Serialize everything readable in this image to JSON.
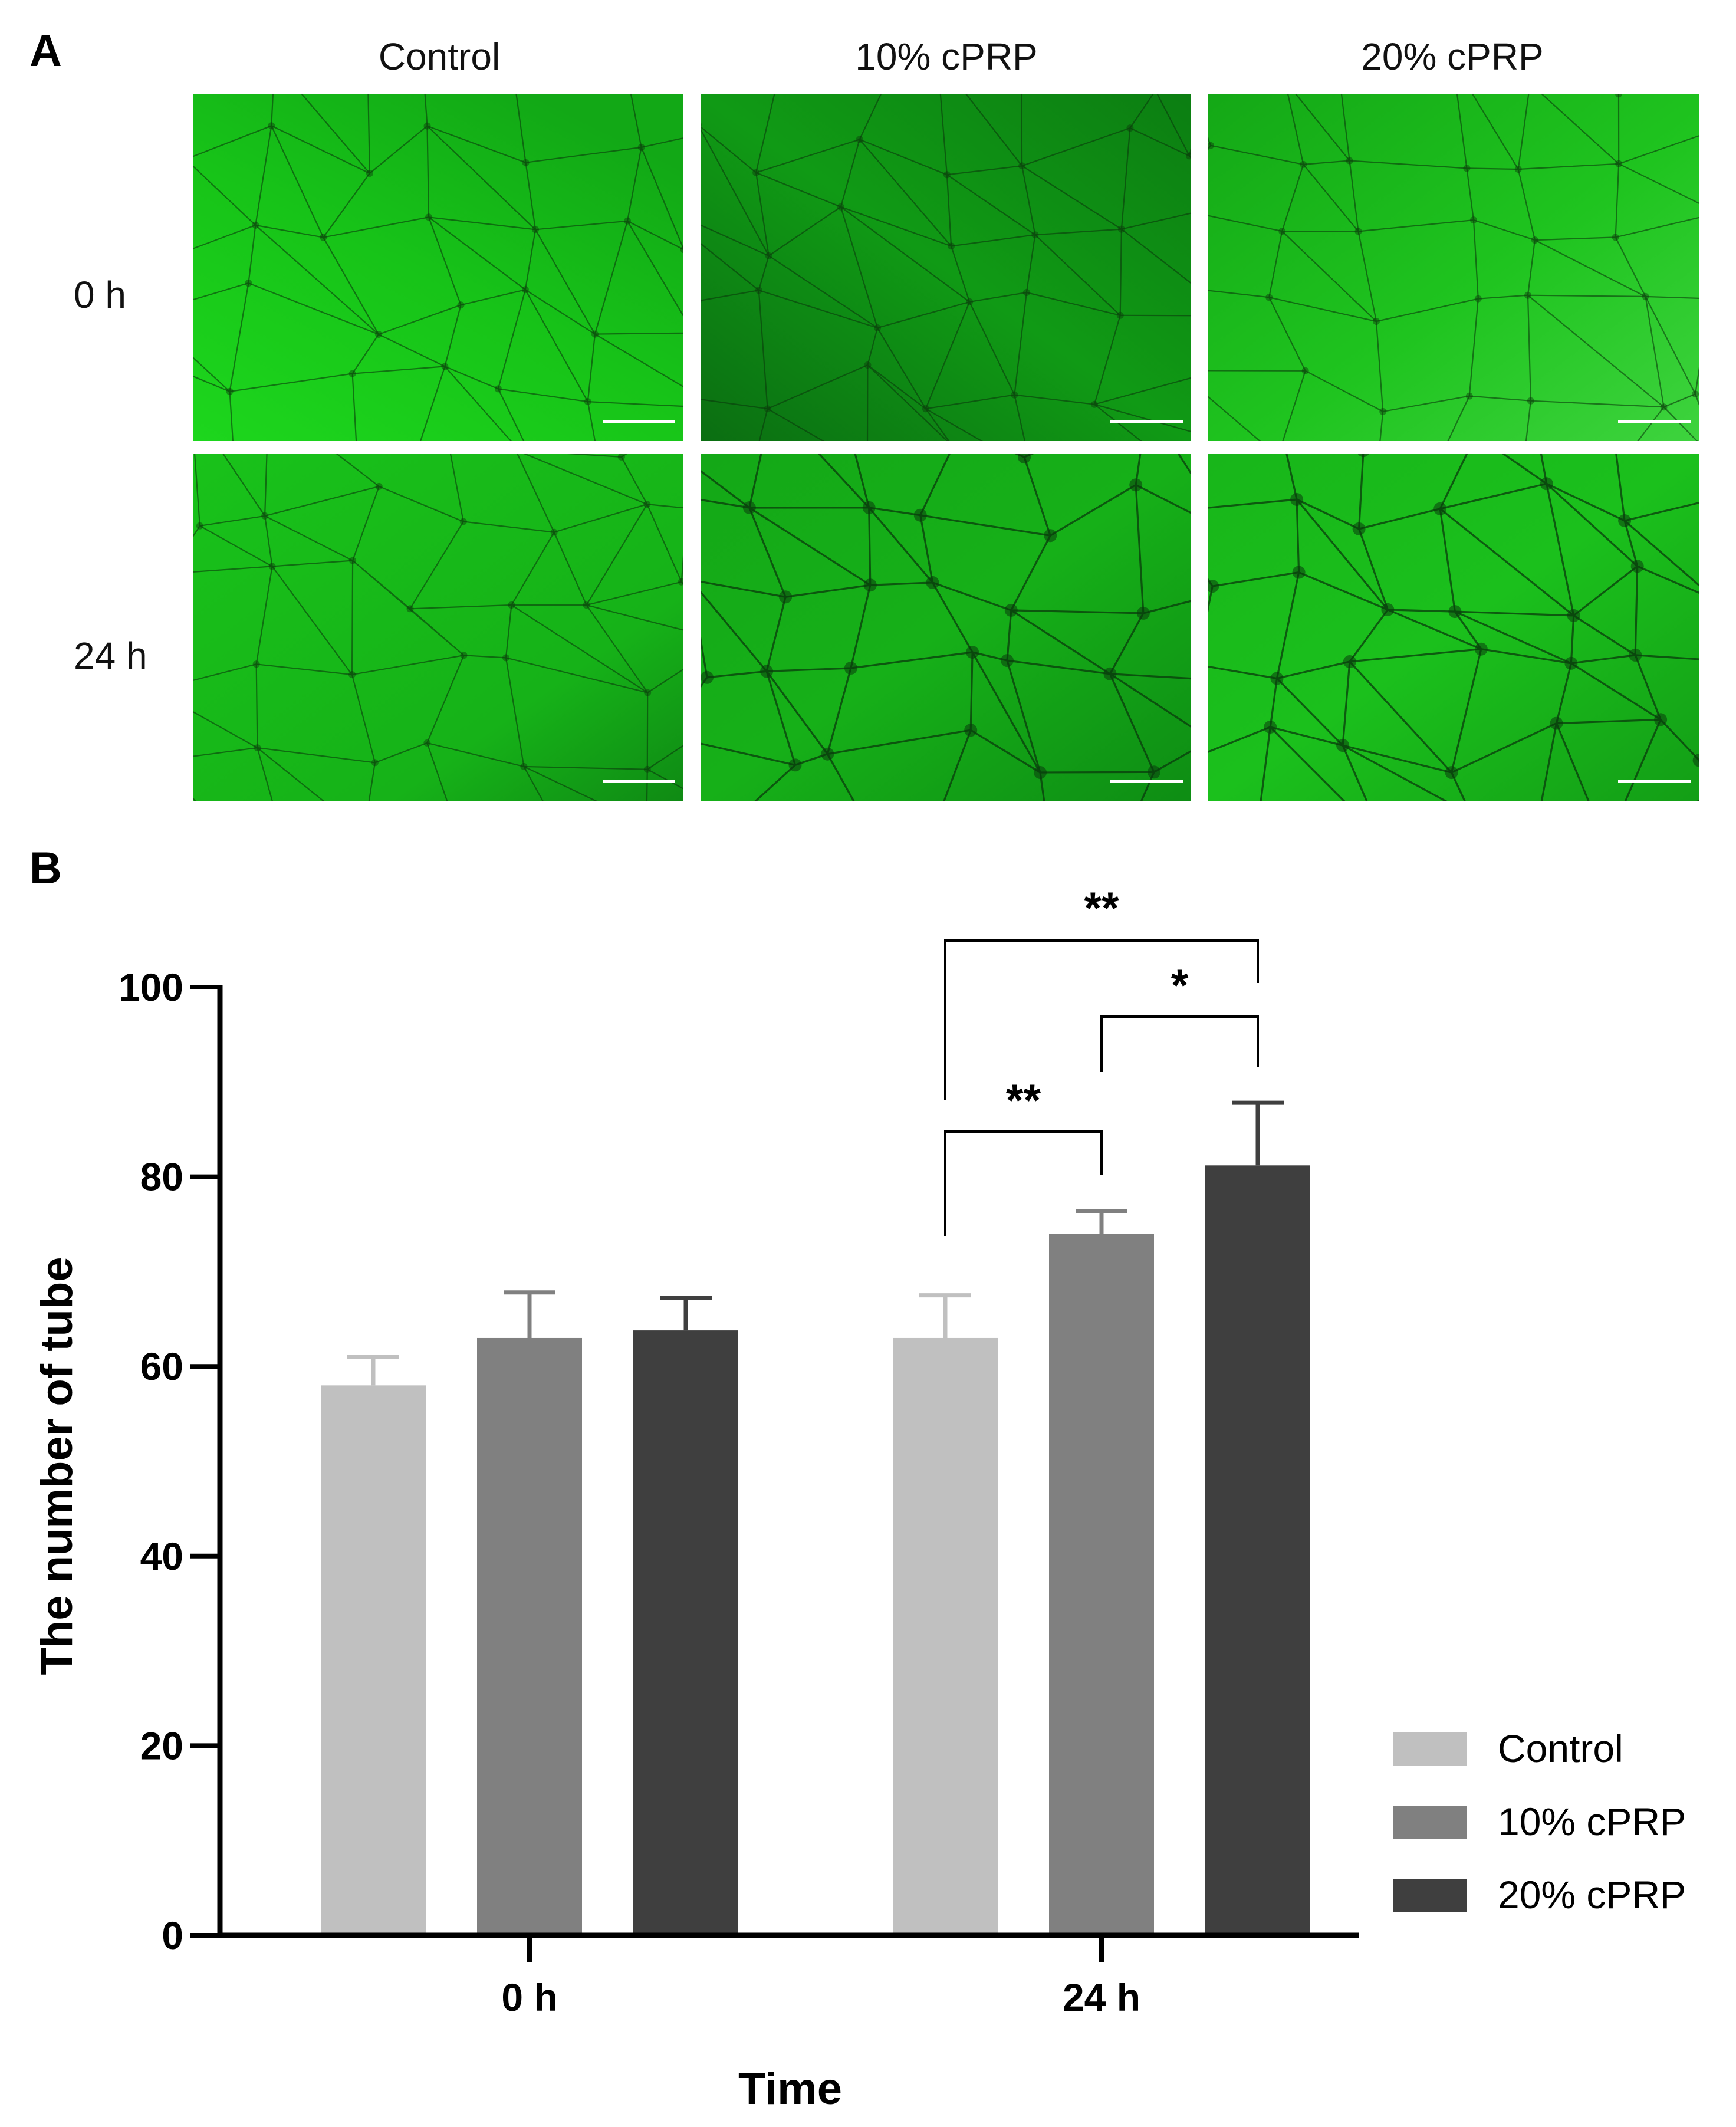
{
  "panel_a": {
    "letter": "A",
    "columns": [
      "Control",
      "10% cPRP",
      "20% cPRP"
    ],
    "rows": [
      "0 h",
      "24 h"
    ],
    "colors": {
      "bright": "#19cc19",
      "dark": "#0b7a14",
      "network": "#0a3a0c",
      "scale_bar": "#ffffff"
    }
  },
  "panel_b": {
    "letter": "B",
    "colors": {
      "Control": "#c0c0c0",
      "10% cPRP": "#808080",
      "20% cPRP": "#3f3f3f",
      "axis": "#000000"
    },
    "significance": [
      {
        "group": "24 h",
        "from": "Control",
        "to": "20% cPRP",
        "label": "**"
      },
      {
        "group": "24 h",
        "from": "10% cPRP",
        "to": "20% cPRP",
        "label": "*"
      },
      {
        "group": "24 h",
        "from": "Control",
        "to": "10% cPRP",
        "label": "**"
      }
    ]
  },
  "chart_data": {
    "type": "bar",
    "categories": [
      "0 h",
      "24 h"
    ],
    "series": [
      {
        "name": "Control",
        "values": [
          58,
          63
        ],
        "error": [
          3,
          4.5
        ]
      },
      {
        "name": "10% cPRP",
        "values": [
          63,
          74
        ],
        "error": [
          4.8,
          2.4
        ]
      },
      {
        "name": "20% cPRP",
        "values": [
          63.8,
          81.2
        ],
        "error": [
          3.4,
          6.6
        ]
      }
    ],
    "xlabel": "Time",
    "ylabel": "The  number of tube",
    "ylim": [
      0,
      100
    ],
    "yticks": [
      0,
      20,
      40,
      60,
      80,
      100
    ],
    "grid": false,
    "legend": "right"
  }
}
